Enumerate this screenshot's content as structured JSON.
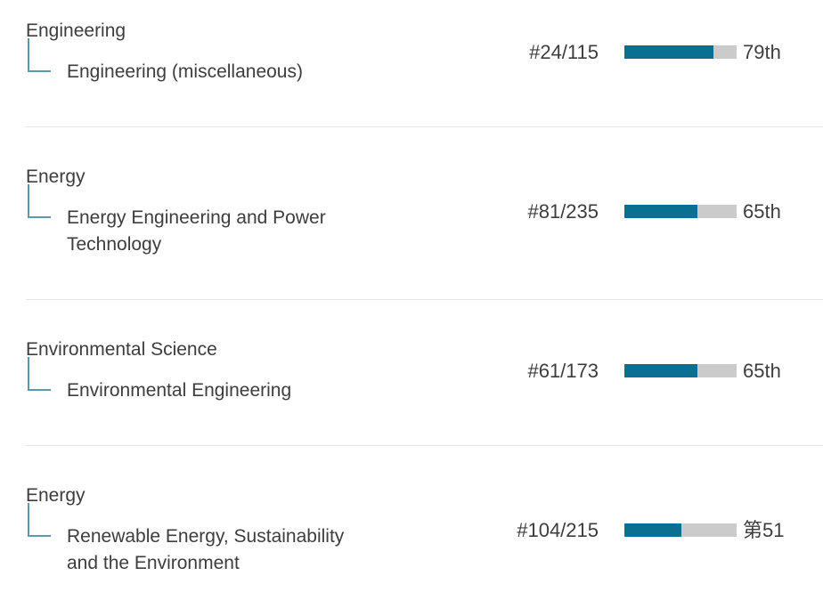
{
  "colors": {
    "bar_fill": "#0a6f90",
    "bar_track": "#cbcbcb",
    "connector": "#5b9aad",
    "divider": "#e6e6e6",
    "text": "#3d3d3d",
    "background": "#ffffff"
  },
  "rows": [
    {
      "category": "Engineering",
      "subcategory": "Engineering (miscellaneous)",
      "rank": "#24/115",
      "percentile": 79,
      "percentile_label": "79th"
    },
    {
      "category": "Energy",
      "subcategory": "Energy Engineering and Power Technology",
      "rank": "#81/235",
      "percentile": 65,
      "percentile_label": "65th"
    },
    {
      "category": "Environmental Science",
      "subcategory": "Environmental Engineering",
      "rank": "#61/173",
      "percentile": 65,
      "percentile_label": "65th"
    },
    {
      "category": "Energy",
      "subcategory": "Renewable Energy, Sustainability and the Environment",
      "rank": "#104/215",
      "percentile": 51,
      "percentile_label": "第51"
    }
  ]
}
